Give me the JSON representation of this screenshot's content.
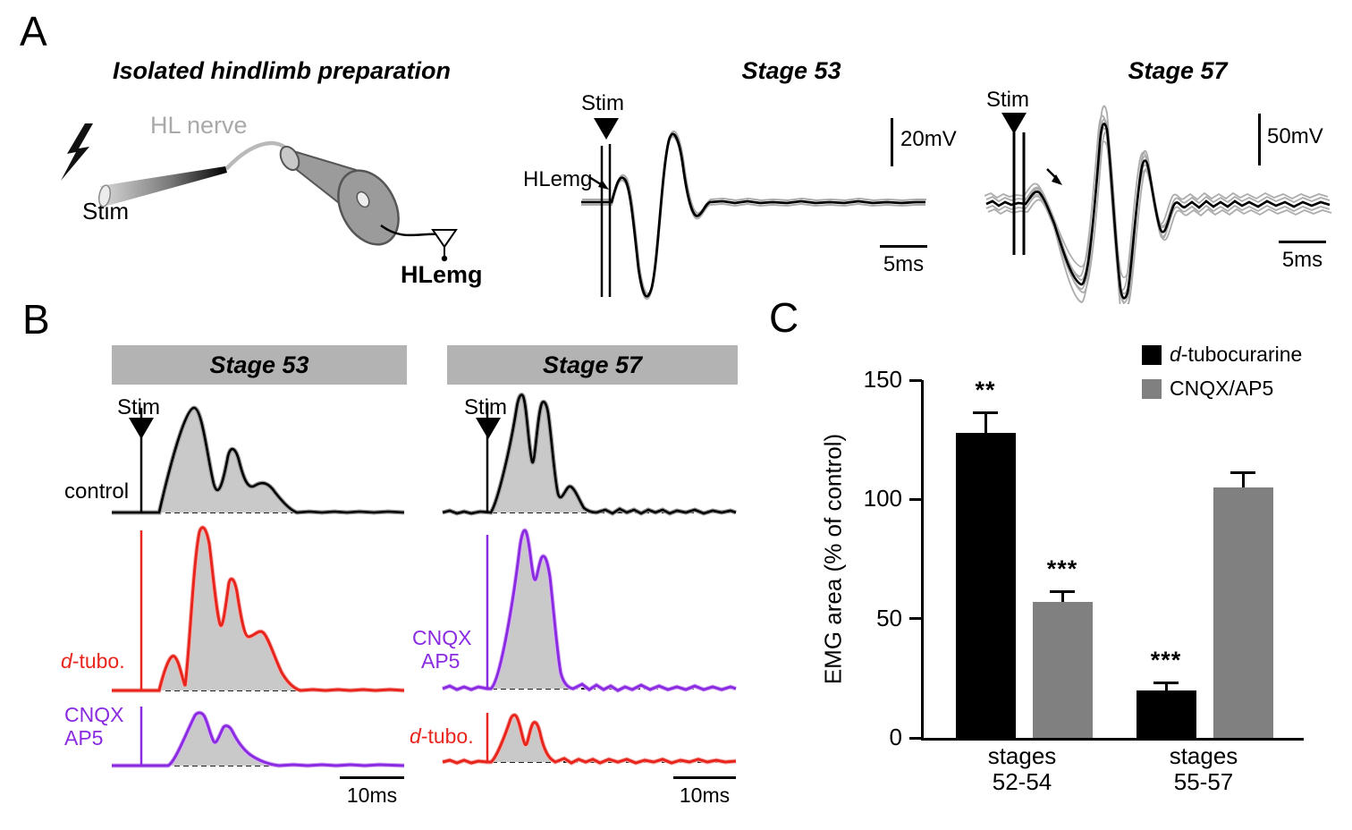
{
  "colors": {
    "red": "#e8251c",
    "purple": "#8a2be2",
    "trace_fill_gray": "#c9c9c9",
    "header_gray": "#b3b3b3",
    "bar_black": "#000000",
    "bar_gray": "#808080"
  },
  "panelA": {
    "label": "A",
    "prep_title": "Isolated hindlimb preparation",
    "schematic": {
      "stim_label": "Stim",
      "nerve_label": "HL nerve",
      "emg_label": "HLemg"
    },
    "stage53": {
      "title": "Stage 53",
      "stim_label": "Stim",
      "trace_label": "HLemg",
      "vscale_label": "20mV",
      "hscale_label": "5ms"
    },
    "stage57": {
      "title": "Stage 57",
      "stim_label": "Stim",
      "vscale_label": "50mV",
      "hscale_label": "5ms"
    }
  },
  "panelB": {
    "label": "B",
    "columns": [
      {
        "header": "Stage 53",
        "stim_label": "Stim",
        "row1_label": "control",
        "row1_color": "#000000",
        "row2_label_italic": "d",
        "row2_label_rest": "-tubo.",
        "row2_color": "#e8251c",
        "row3_label_line1": "CNQX",
        "row3_label_line2": "AP5",
        "row3_color": "#8a2be2",
        "scale_label": "10ms"
      },
      {
        "header": "Stage 57",
        "stim_label": "Stim",
        "row1_color": "#000000",
        "row2_label_line1": "CNQX",
        "row2_label_line2": "AP5",
        "row2_color": "#8a2be2",
        "row3_label_italic": "d",
        "row3_label_rest": "-tubo.",
        "row3_color": "#e8251c",
        "scale_label": "10ms"
      }
    ]
  },
  "panelC": {
    "label": "C",
    "ylabel": "EMG area (% of control)",
    "legend": [
      {
        "label_italic": "d",
        "label_rest": "-tubocurarine"
      },
      {
        "label_italic": "",
        "label_rest": "CNQX/AP5"
      }
    ],
    "groups": [
      {
        "line1": "stages",
        "line2": "52-54"
      },
      {
        "line1": "stages",
        "line2": "55-57"
      }
    ]
  },
  "chart_data": {
    "type": "bar",
    "title": "",
    "ylabel": "EMG area (% of control)",
    "ylim": [
      0,
      150
    ],
    "yticks": [
      0,
      50,
      100,
      150
    ],
    "categories": [
      "stages 52-54",
      "stages 55-57"
    ],
    "series": [
      {
        "name": "d-tubocurarine",
        "color": "#000000",
        "values": [
          128,
          20
        ],
        "errors": [
          8,
          3
        ],
        "significance": [
          "**",
          "***"
        ]
      },
      {
        "name": "CNQX/AP5",
        "color": "#808080",
        "values": [
          57,
          105
        ],
        "errors": [
          4,
          6
        ],
        "significance": [
          "***",
          ""
        ]
      }
    ],
    "legend_position": "upper-right",
    "grid": false
  }
}
